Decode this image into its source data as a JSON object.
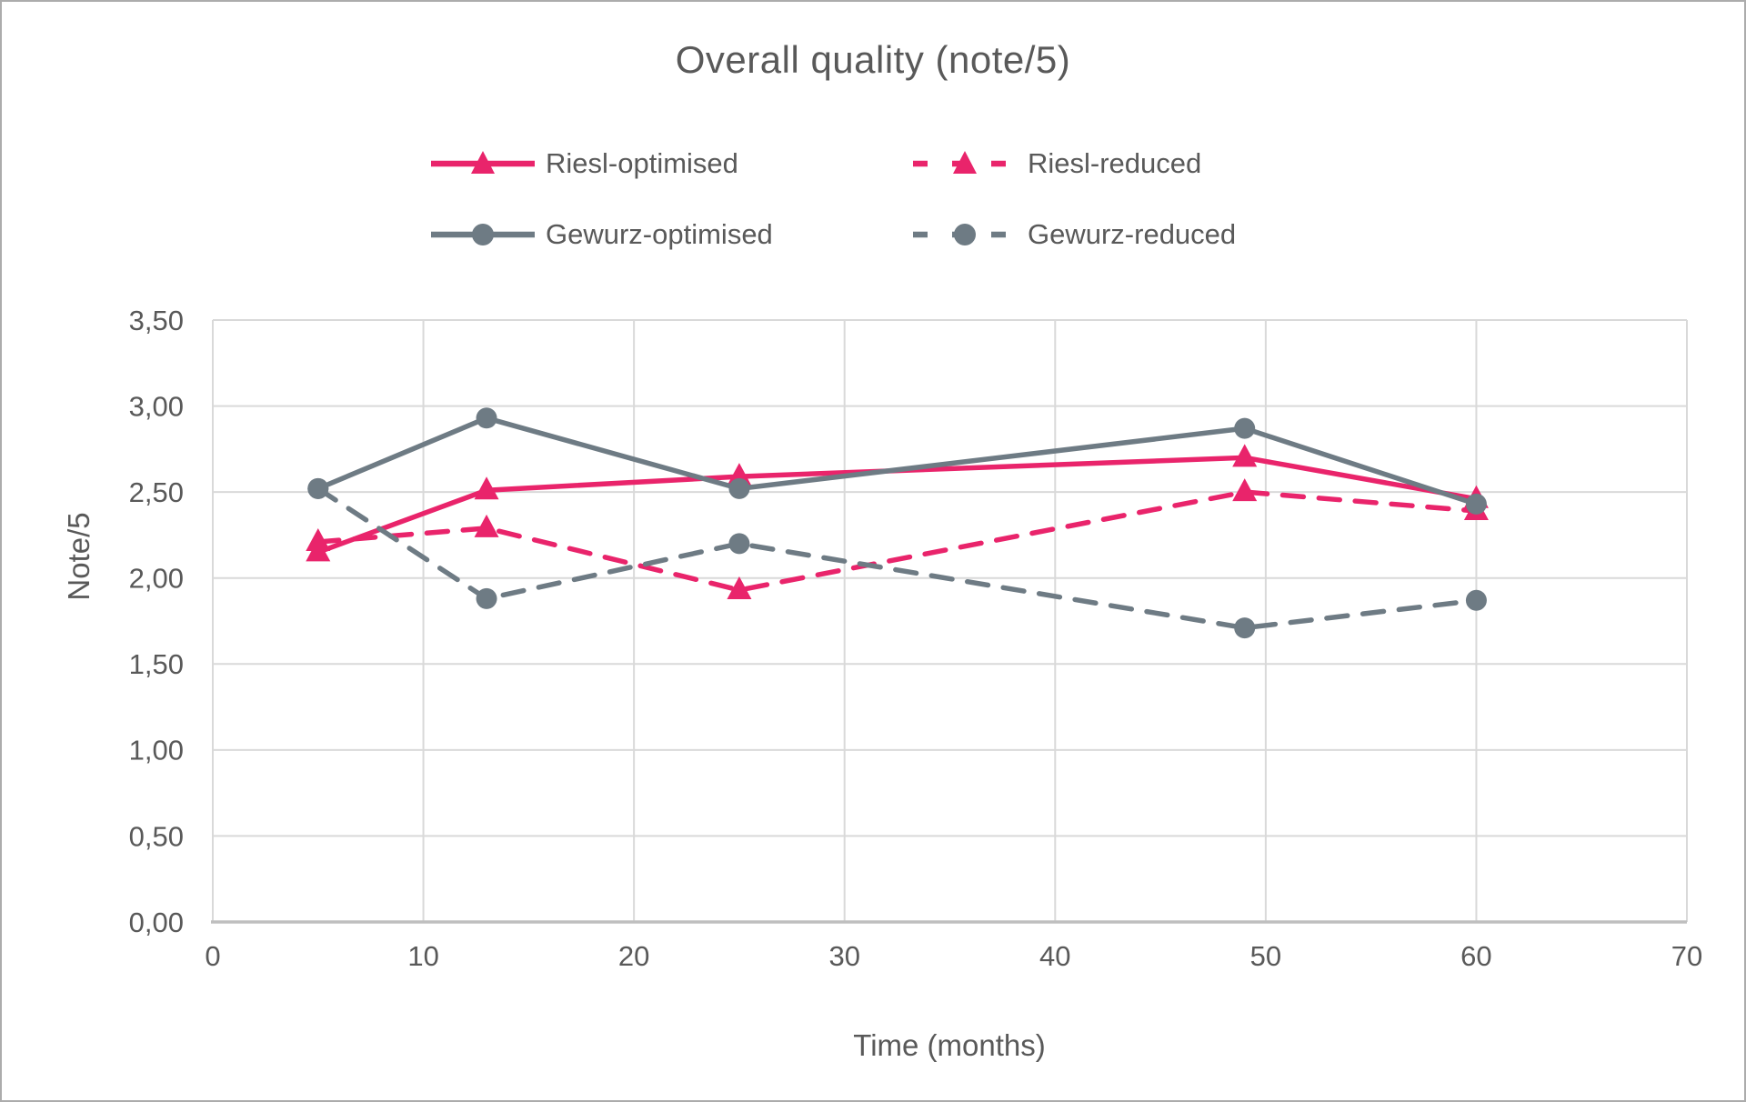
{
  "chart_data": {
    "type": "line",
    "title": "Overall quality (note/5)",
    "xlabel": "Time (months)",
    "ylabel": "Note/5",
    "xlim": [
      0,
      70
    ],
    "ylim": [
      0,
      3.5
    ],
    "grid": true,
    "legend_position": "top-two-rows",
    "x_ticks": [
      {
        "value": 0,
        "label": "0"
      },
      {
        "value": 10,
        "label": "10"
      },
      {
        "value": 20,
        "label": "20"
      },
      {
        "value": 30,
        "label": "30"
      },
      {
        "value": 40,
        "label": "40"
      },
      {
        "value": 50,
        "label": "50"
      },
      {
        "value": 60,
        "label": "60"
      },
      {
        "value": 70,
        "label": "70"
      }
    ],
    "y_ticks": [
      {
        "value": 0.0,
        "label": "0,00"
      },
      {
        "value": 0.5,
        "label": "0,50"
      },
      {
        "value": 1.0,
        "label": "1,00"
      },
      {
        "value": 1.5,
        "label": "1,50"
      },
      {
        "value": 2.0,
        "label": "2,00"
      },
      {
        "value": 2.5,
        "label": "2,50"
      },
      {
        "value": 3.0,
        "label": "3,00"
      },
      {
        "value": 3.5,
        "label": "3,50"
      }
    ],
    "x": [
      5,
      13,
      25,
      49,
      60
    ],
    "series": [
      {
        "name": "Riesl-optimised",
        "color": "#e9246b",
        "line": "solid",
        "marker": "triangle",
        "values": [
          2.15,
          2.51,
          2.59,
          2.7,
          2.46
        ]
      },
      {
        "name": "Riesl-reduced",
        "color": "#e9246b",
        "line": "dashed",
        "marker": "triangle",
        "values": [
          2.21,
          2.29,
          1.93,
          2.5,
          2.39
        ]
      },
      {
        "name": "Gewurz-optimised",
        "color": "#6e7b84",
        "line": "solid",
        "marker": "circle",
        "values": [
          2.52,
          2.93,
          2.52,
          2.87,
          2.43
        ]
      },
      {
        "name": "Gewurz-reduced",
        "color": "#6e7b84",
        "line": "dashed",
        "marker": "circle",
        "values": [
          2.52,
          1.88,
          2.2,
          1.71,
          1.87
        ]
      }
    ],
    "z_order": [
      0,
      1,
      3,
      2
    ]
  },
  "colors": {
    "text": "#595959",
    "gridline": "#d9d9d9",
    "axis_line": "#bfbfbf",
    "background": "#ffffff",
    "frame_border": "#acacac"
  }
}
